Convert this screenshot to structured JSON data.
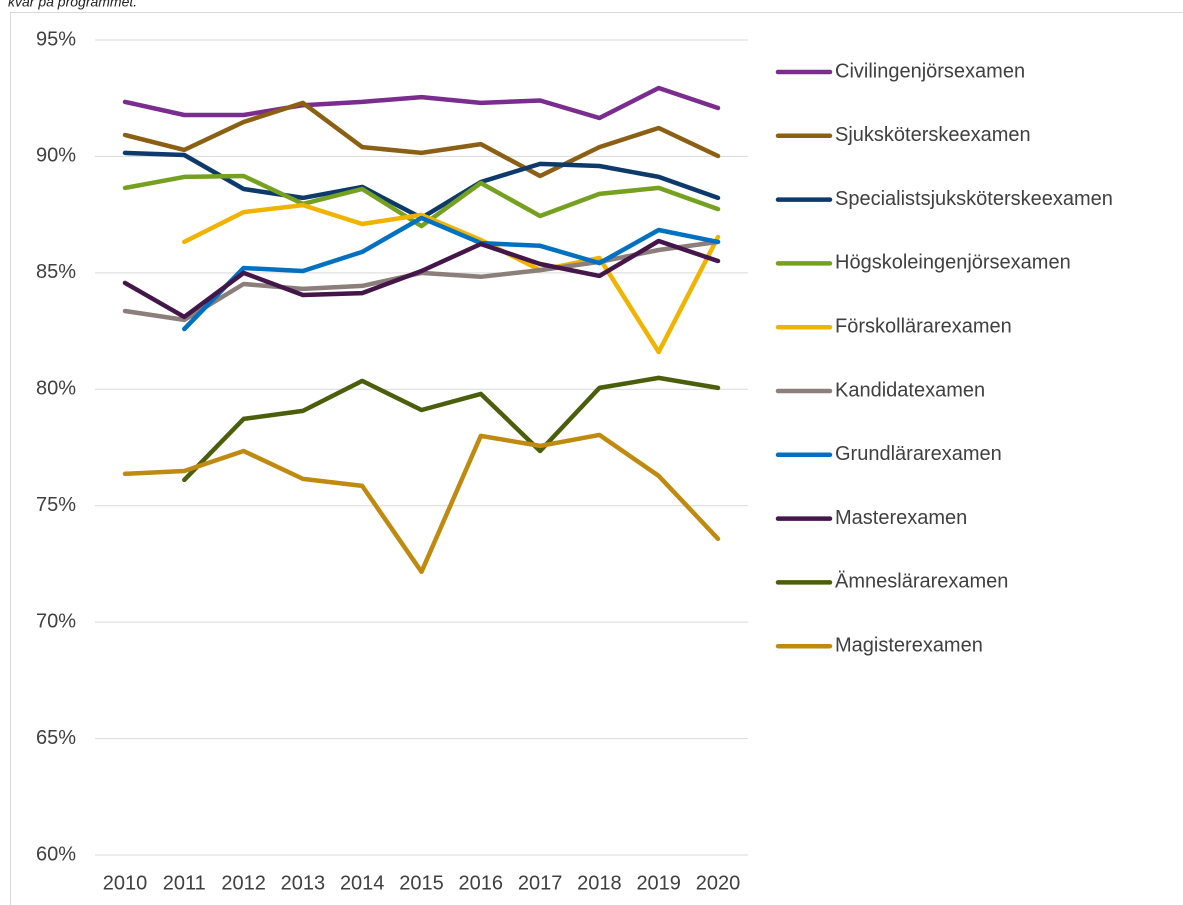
{
  "chart_data": {
    "type": "line",
    "subtitle": "kvar på programmet.",
    "categories": [
      "2010",
      "2011",
      "2012",
      "2013",
      "2014",
      "2015",
      "2016",
      "2017",
      "2018",
      "2019",
      "2020"
    ],
    "ylim": [
      60,
      95
    ],
    "yticks": [
      {
        "value": 60,
        "label": "60%"
      },
      {
        "value": 65,
        "label": "65%"
      },
      {
        "value": 70,
        "label": "70%"
      },
      {
        "value": 75,
        "label": "75%"
      },
      {
        "value": 80,
        "label": "80%"
      },
      {
        "value": 85,
        "label": "85%"
      },
      {
        "value": 90,
        "label": "90%"
      },
      {
        "value": 95,
        "label": "95%"
      }
    ],
    "grid": true,
    "legend": "right",
    "series": [
      {
        "name": "Civilingenjörsexamen",
        "color": "#7b2c8f",
        "values": [
          92.34,
          91.78,
          91.78,
          92.2,
          92.34,
          92.55,
          92.3,
          92.4,
          91.65,
          92.94,
          92.08
        ]
      },
      {
        "name": "Sjuksköterskeexamen",
        "color": "#8b6014",
        "values": [
          90.92,
          90.28,
          91.48,
          92.3,
          90.4,
          90.15,
          90.53,
          89.16,
          90.4,
          91.22,
          90.02
        ]
      },
      {
        "name": "Specialistsjuksköterskeexamen",
        "color": "#0d3a6b",
        "values": [
          90.15,
          90.06,
          88.6,
          88.22,
          88.69,
          87.36,
          88.9,
          89.68,
          89.59,
          89.12,
          88.22
        ]
      },
      {
        "name": "Högskoleingenjörsexamen",
        "color": "#76a020",
        "values": [
          88.65,
          89.12,
          89.16,
          87.96,
          88.6,
          87.01,
          88.86,
          87.44,
          88.39,
          88.65,
          87.74
        ]
      },
      {
        "name": "Förskollärarexamen",
        "color": "#f0b400",
        "values": [
          null,
          86.33,
          87.61,
          87.91,
          87.1,
          87.49,
          86.41,
          85.12,
          85.64,
          81.6,
          86.54
        ]
      },
      {
        "name": "Kandidatexamen",
        "color": "#8c7e7a",
        "values": [
          83.36,
          82.98,
          84.52,
          84.31,
          84.44,
          85.0,
          84.83,
          85.12,
          85.47,
          85.98,
          86.33
        ]
      },
      {
        "name": "Grundlärarexamen",
        "color": "#0070c0",
        "values": [
          null,
          82.59,
          85.21,
          85.08,
          85.9,
          87.36,
          86.28,
          86.16,
          85.42,
          86.84,
          86.33
        ]
      },
      {
        "name": "Masterexamen",
        "color": "#44164a",
        "values": [
          84.57,
          83.11,
          85.0,
          84.05,
          84.13,
          85.08,
          86.24,
          85.38,
          84.87,
          86.37,
          85.51
        ]
      },
      {
        "name": "Ämneslärarexamen",
        "color": "#4a5e0c",
        "values": [
          null,
          76.11,
          78.73,
          79.07,
          80.36,
          79.11,
          79.8,
          77.35,
          80.06,
          80.49,
          80.06
        ]
      },
      {
        "name": "Magisterexamen",
        "color": "#bf8a0f",
        "values": [
          76.37,
          76.49,
          77.35,
          76.15,
          75.85,
          72.16,
          78.0,
          77.57,
          78.04,
          76.28,
          73.58
        ]
      }
    ]
  }
}
